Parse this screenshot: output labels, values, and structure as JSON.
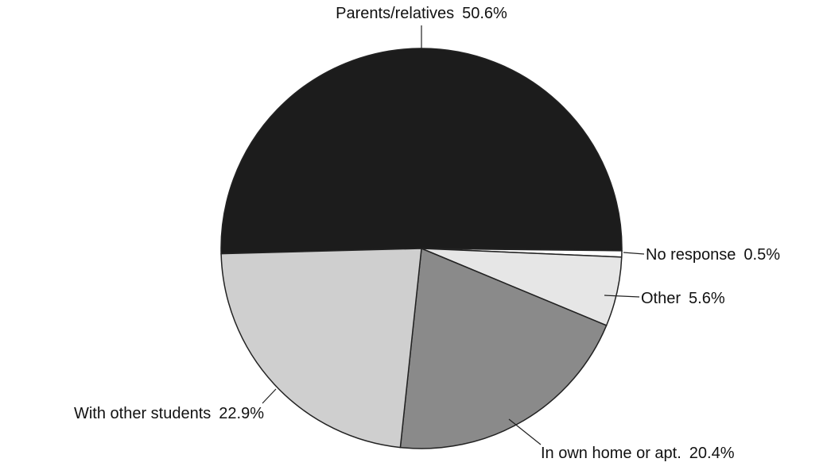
{
  "chart_data": {
    "type": "pie",
    "categories": [
      "Parents/relatives",
      "No response",
      "Other",
      "In own home or apt.",
      "With other students"
    ],
    "values": [
      50.6,
      0.5,
      5.6,
      20.4,
      22.9
    ],
    "value_labels": [
      "50.6%",
      "0.5%",
      "5.6%",
      "20.4%",
      "22.9%"
    ],
    "colors": [
      "#1c1c1c",
      "#ffffff",
      "#e6e6e6",
      "#8a8a8a",
      "#cfcfcf"
    ]
  }
}
